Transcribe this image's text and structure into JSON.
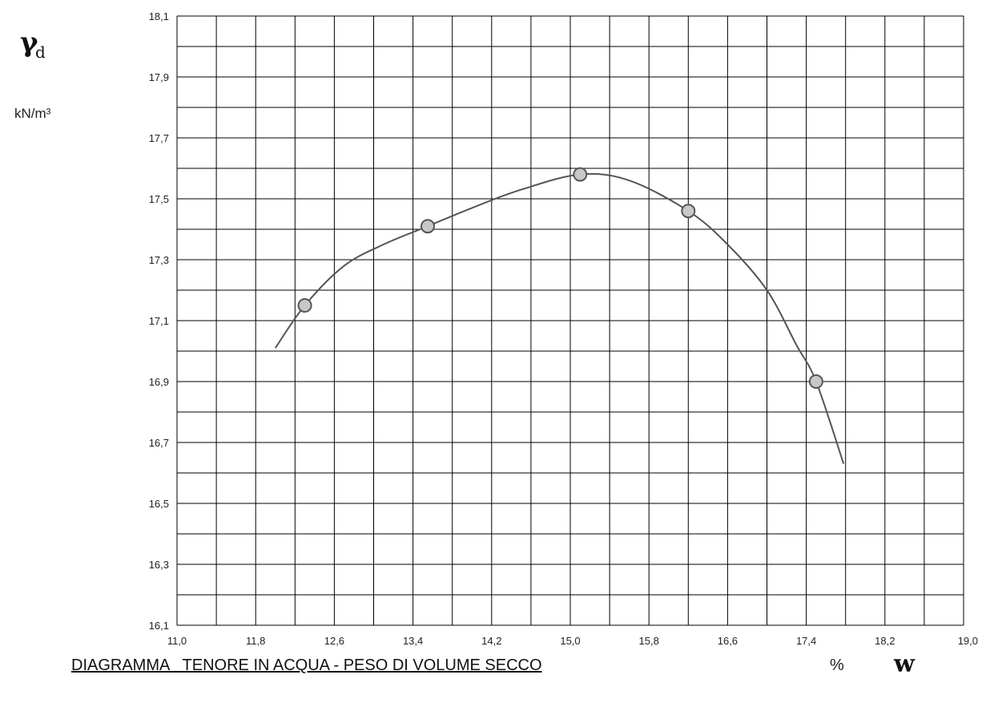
{
  "chart_data": {
    "type": "scatter",
    "title": "DIAGRAMMA   TENORE IN ACQUA - PESO DI VOLUME SECCO",
    "ylabel_symbol": "γ",
    "ylabel_subscript": "d",
    "ylabel_unit": "kN/m³",
    "xlabel_unit": "%",
    "xlabel_symbol": "w",
    "xlim": [
      11.0,
      19.0
    ],
    "ylim": [
      16.1,
      18.1
    ],
    "x_ticks": [
      "11,0",
      "11,8",
      "12,6",
      "13,4",
      "14,2",
      "15,0",
      "15,8",
      "16,6",
      "17,4",
      "18,2",
      "19,0"
    ],
    "y_ticks": [
      "18,1",
      "17,9",
      "17,7",
      "17,5",
      "17,3",
      "17,1",
      "16,9",
      "16,7",
      "16,5",
      "16,3",
      "16,1"
    ],
    "grid": true,
    "points": [
      {
        "x": 12.3,
        "y": 17.15
      },
      {
        "x": 13.55,
        "y": 17.41
      },
      {
        "x": 15.1,
        "y": 17.58
      },
      {
        "x": 16.2,
        "y": 17.46
      },
      {
        "x": 17.5,
        "y": 16.9
      }
    ],
    "fit_curve": [
      {
        "x": 12.0,
        "y": 17.01
      },
      {
        "x": 12.3,
        "y": 17.15
      },
      {
        "x": 12.7,
        "y": 17.28
      },
      {
        "x": 13.1,
        "y": 17.35
      },
      {
        "x": 13.55,
        "y": 17.41
      },
      {
        "x": 14.0,
        "y": 17.47
      },
      {
        "x": 14.5,
        "y": 17.53
      },
      {
        "x": 15.1,
        "y": 17.58
      },
      {
        "x": 15.6,
        "y": 17.56
      },
      {
        "x": 16.2,
        "y": 17.46
      },
      {
        "x": 16.6,
        "y": 17.35
      },
      {
        "x": 17.0,
        "y": 17.2
      },
      {
        "x": 17.3,
        "y": 17.02
      },
      {
        "x": 17.5,
        "y": 16.9
      },
      {
        "x": 17.78,
        "y": 16.63
      }
    ],
    "colors": {
      "grid": "#000000",
      "curve": "#555555",
      "marker_fill": "#c8c8c8",
      "marker_stroke": "#555555"
    }
  }
}
